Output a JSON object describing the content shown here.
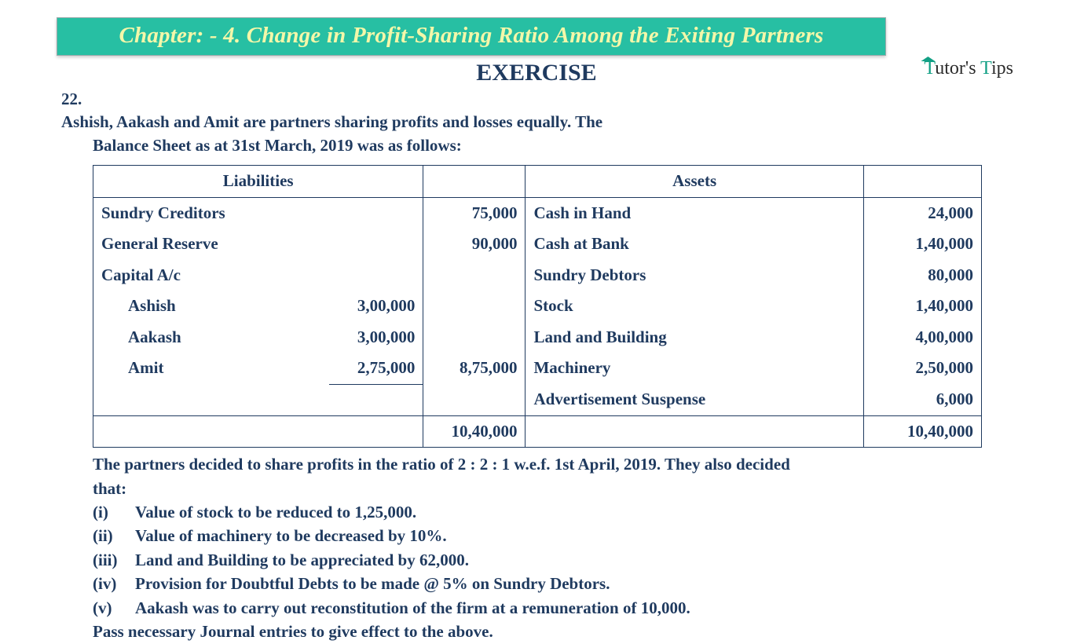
{
  "banner": {
    "title": "Chapter: - 4. Change in Profit-Sharing Ratio Among the Exiting Partners"
  },
  "heading": "EXERCISE",
  "logo": {
    "t1": "T",
    "rest1": "utor's",
    "t2": "T",
    "rest2": "ips"
  },
  "question": {
    "num": "22.",
    "line1": "Ashish, Aakash and Amit are partners sharing profits and losses equally. The",
    "line2": "Balance Sheet as at 31st March, 2019 was as follows:"
  },
  "table": {
    "headers": {
      "liab": "Liabilities",
      "assets": "Assets"
    },
    "liab": {
      "sundry_creditors": {
        "label": "Sundry Creditors",
        "amt": "75,000"
      },
      "general_reserve": {
        "label": "General Reserve",
        "amt": "90,000"
      },
      "capital_head": {
        "label": "Capital A/c"
      },
      "ashish": {
        "label": "Ashish",
        "sub": "3,00,000"
      },
      "aakash": {
        "label": "Aakash",
        "sub": "3,00,000"
      },
      "amit": {
        "label": "Amit",
        "sub": "2,75,000",
        "total": "8,75,000"
      },
      "grand": "10,40,000"
    },
    "assets": {
      "cash_hand": {
        "label": "Cash in Hand",
        "amt": "24,000"
      },
      "cash_bank": {
        "label": "Cash at Bank",
        "amt": "1,40,000"
      },
      "debtors": {
        "label": "Sundry Debtors",
        "amt": "80,000"
      },
      "stock": {
        "label": "Stock",
        "amt": "1,40,000"
      },
      "land": {
        "label": "Land and Building",
        "amt": "4,00,000"
      },
      "machinery": {
        "label": "Machinery",
        "amt": "2,50,000"
      },
      "adv": {
        "label": "Advertisement Suspense",
        "amt": "6,000"
      },
      "grand": "10,40,000"
    }
  },
  "notes": {
    "intro1": "The partners decided to share profits in the ratio of 2 : 2 : 1 w.e.f. 1st April, 2019. They also decided",
    "intro2": "that:",
    "items": [
      {
        "n": "(i)",
        "t": "Value of stock to be reduced to 1,25,000."
      },
      {
        "n": "(ii)",
        "t": "Value of machinery to be decreased by 10%."
      },
      {
        "n": "(iii)",
        "t": "Land and Building to be appreciated by 62,000."
      },
      {
        "n": "(iv)",
        "t": "Provision for Doubtful Debts to be made @ 5% on Sundry Debtors."
      },
      {
        "n": "(v)",
        "t": "Aakash was to carry out reconstitution of the firm at a remuneration of 10,000."
      }
    ],
    "closing": "Pass necessary Journal entries to give effect to the above."
  },
  "style": {
    "brand_color": "#27bfa3",
    "accent_text": "#f4f7a9",
    "text_color": "#1f3a5f"
  }
}
